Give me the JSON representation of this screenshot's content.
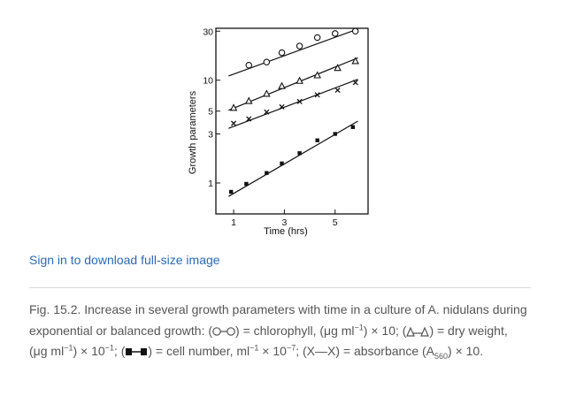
{
  "chart_data": {
    "type": "scatter",
    "ylabel": "Growth parameters",
    "xlabel": "Time (hrs)",
    "x_ticks": [
      {
        "value": 1,
        "label": "1"
      },
      {
        "value": 3,
        "label": "3"
      },
      {
        "value": 5,
        "label": "5"
      }
    ],
    "y_ticks": [
      {
        "value": 1,
        "label": "1"
      },
      {
        "value": 3,
        "label": "3"
      },
      {
        "value": 5,
        "label": "5"
      },
      {
        "value": 10,
        "label": "10"
      },
      {
        "value": 30,
        "label": "30"
      }
    ],
    "y_scale": "log",
    "xlim": [
      0.3,
      6.3
    ],
    "ylim": [
      0.5,
      32
    ],
    "series": [
      {
        "marker": "circle-open",
        "x": [
          1.6,
          2.3,
          2.9,
          3.6,
          4.3,
          5.0,
          5.8
        ],
        "y": [
          14,
          15,
          18.5,
          21.5,
          26,
          28.5,
          30
        ],
        "fit": [
          [
            0.8,
            11.0
          ],
          [
            5.9,
            31.5
          ]
        ]
      },
      {
        "marker": "triangle-open",
        "x": [
          1.0,
          1.6,
          2.3,
          2.9,
          3.6,
          4.3,
          5.1,
          5.8
        ],
        "y": [
          5.4,
          6.3,
          7.4,
          8.8,
          9.9,
          11.2,
          13.2,
          15.4
        ],
        "fit": [
          [
            0.8,
            5.1
          ],
          [
            5.9,
            16.5
          ]
        ]
      },
      {
        "marker": "x",
        "x": [
          1.0,
          1.6,
          2.3,
          2.9,
          3.6,
          4.3,
          5.1,
          5.8
        ],
        "y": [
          3.8,
          4.2,
          4.9,
          5.5,
          6.2,
          7.2,
          8.0,
          9.5
        ],
        "fit": [
          [
            0.8,
            3.4
          ],
          [
            5.9,
            10.2
          ]
        ]
      },
      {
        "marker": "square-filled",
        "x": [
          0.9,
          1.5,
          2.3,
          2.9,
          3.6,
          4.3,
          5.0,
          5.7
        ],
        "y": [
          0.82,
          0.98,
          1.25,
          1.55,
          1.95,
          2.6,
          3.0,
          3.5
        ],
        "fit": [
          [
            0.8,
            0.74
          ],
          [
            5.9,
            4.0
          ]
        ]
      }
    ]
  },
  "signin": {
    "label": "Sign in to download full-size image"
  },
  "caption": {
    "p1": "Fig. 15.2. Increase in several growth parameters with time in a culture of A. nidulans during exponential or balanced growth: (",
    "p2": ") = chlorophyll, (μg ml",
    "p3": ") × 10; (",
    "p4": ") = dry weight, (μg ml",
    "p5": ") × 10",
    "p6": "; (",
    "p7": ") = cell number, ml",
    "p8": " × 10",
    "p9": "; (X—X) = absorbance (A",
    "p10": ") × 10.",
    "sup_neg1": "−1",
    "sup_neg7": "−7",
    "sub_560": "560"
  },
  "colors": {
    "link": "#2a6ab8",
    "caption_text": "#555555",
    "divider": "#d9d9d9",
    "ink": "#111111"
  }
}
